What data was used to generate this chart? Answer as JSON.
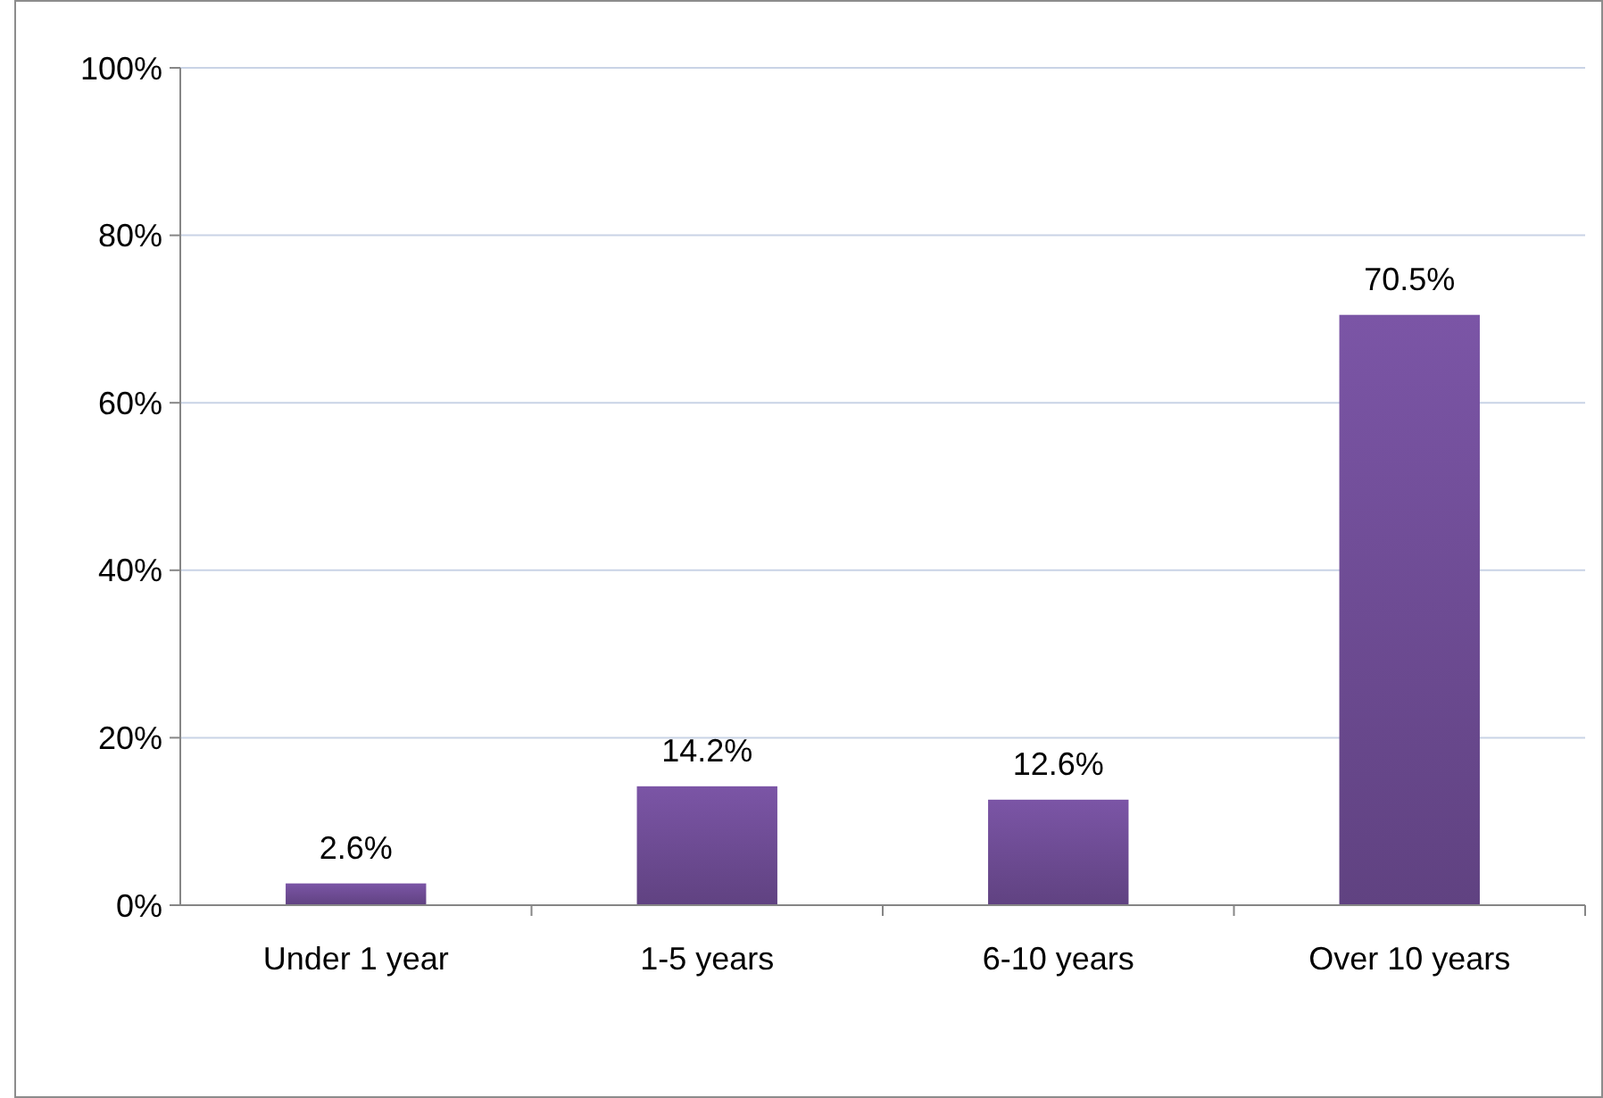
{
  "chart_data": {
    "type": "bar",
    "categories": [
      "Under 1 year",
      "1-5 years",
      "6-10 years",
      "Over 10 years"
    ],
    "values": [
      2.6,
      14.2,
      12.6,
      70.5
    ],
    "value_labels": [
      "2.6%",
      "14.2%",
      "12.6%",
      "70.5%"
    ],
    "color": "#7b55a6",
    "ylim": [
      0,
      100
    ],
    "yticks": [
      {
        "value": 0,
        "label": "0%"
      },
      {
        "value": 20,
        "label": "20%"
      },
      {
        "value": 40,
        "label": "40%"
      },
      {
        "value": 60,
        "label": "60%"
      },
      {
        "value": 80,
        "label": "80%"
      },
      {
        "value": 100,
        "label": "100%"
      }
    ],
    "grid": "y"
  }
}
